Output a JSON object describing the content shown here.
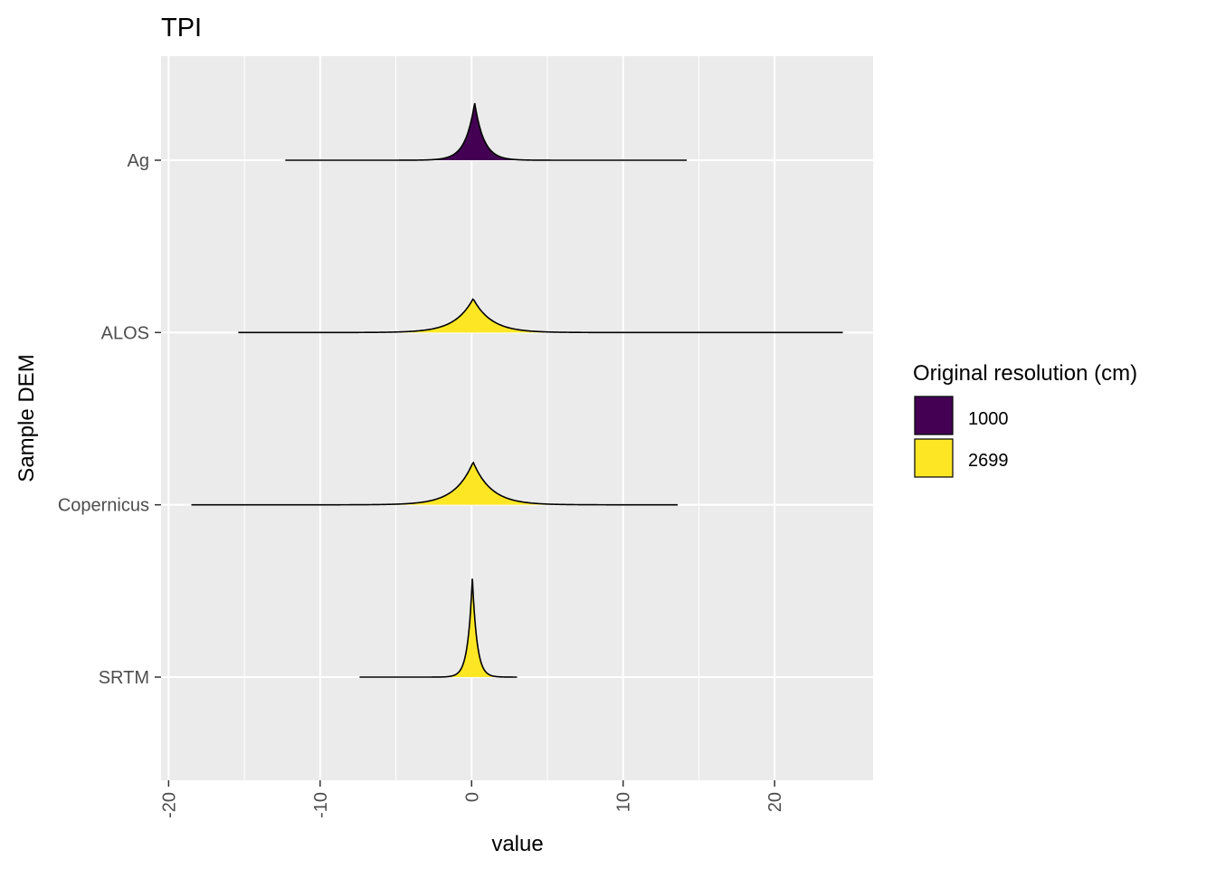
{
  "chart_data": {
    "type": "ridgeline",
    "title": "TPI",
    "xlabel": "value",
    "ylabel": "Sample DEM",
    "xlim": [
      -20.5,
      26.5
    ],
    "x_ticks": [
      -20,
      -10,
      0,
      10,
      20
    ],
    "x_tick_labels": [
      "-20",
      "-10",
      "0",
      "10",
      "20"
    ],
    "categories": [
      "Ag",
      "ALOS",
      "Copernicus",
      "SRTM"
    ],
    "legend": {
      "title": "Original resolution (cm)",
      "position": "right",
      "entries": [
        {
          "label": "1000",
          "color": "#440154"
        },
        {
          "label": "2699",
          "color": "#FDE725"
        }
      ]
    },
    "grid": true,
    "panel_background": "#EBEBEB",
    "series": [
      {
        "category": "Ag",
        "group": "1000",
        "color": "#440154",
        "range": [
          -12.3,
          14.2
        ],
        "peak": 0.2,
        "scale": 0.6,
        "relative_height": 0.58
      },
      {
        "category": "ALOS",
        "group": "2699",
        "color": "#FDE725",
        "range": [
          -15.4,
          24.5
        ],
        "peak": 0.1,
        "scale": 1.2,
        "relative_height": 0.34
      },
      {
        "category": "Copernicus",
        "group": "2699",
        "color": "#FDE725",
        "range": [
          -18.5,
          13.6
        ],
        "peak": 0.1,
        "scale": 1.2,
        "relative_height": 0.43
      },
      {
        "category": "SRTM",
        "group": "2699",
        "color": "#FDE725",
        "range": [
          -7.4,
          3.0
        ],
        "peak": 0.05,
        "scale": 0.3,
        "relative_height": 1.0
      }
    ]
  }
}
